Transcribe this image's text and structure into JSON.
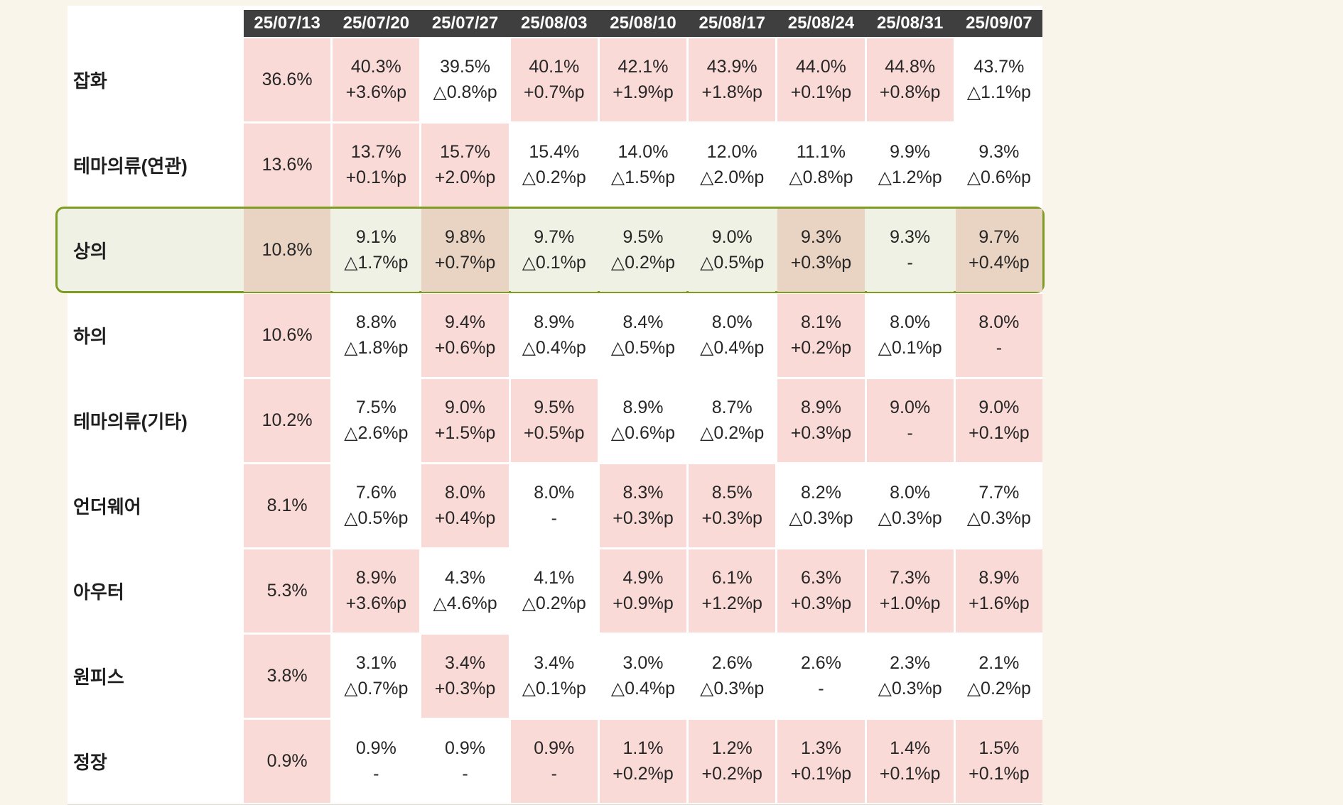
{
  "page": {
    "background_color": "#FAF5EB",
    "panel_color": "#FFFFFF"
  },
  "colors": {
    "header_bg": "#3F3F3F",
    "header_text": "#FFFFFF",
    "cell_pink": "#FADAD6",
    "cell_white": "#FFFFFF",
    "highlight_row_green": "#EEF1E3",
    "highlight_cell_tan": "#E9D3C2",
    "highlight_border_green": "#7E9C24",
    "text_color": "#262626"
  },
  "chart_data": {
    "type": "table",
    "columns": [
      "25/07/13",
      "25/07/20",
      "25/07/27",
      "25/08/03",
      "25/08/10",
      "25/08/17",
      "25/08/24",
      "25/08/31",
      "25/09/07"
    ],
    "rows": [
      {
        "label": "잡화",
        "highlight": false,
        "cells": [
          {
            "value": "36.6%",
            "change": "",
            "bg": "pink"
          },
          {
            "value": "40.3%",
            "change": "+3.6%p",
            "bg": "pink"
          },
          {
            "value": "39.5%",
            "change": "△0.8%p",
            "bg": "white"
          },
          {
            "value": "40.1%",
            "change": "+0.7%p",
            "bg": "pink"
          },
          {
            "value": "42.1%",
            "change": "+1.9%p",
            "bg": "pink"
          },
          {
            "value": "43.9%",
            "change": "+1.8%p",
            "bg": "pink"
          },
          {
            "value": "44.0%",
            "change": "+0.1%p",
            "bg": "pink"
          },
          {
            "value": "44.8%",
            "change": "+0.8%p",
            "bg": "pink"
          },
          {
            "value": "43.7%",
            "change": "△1.1%p",
            "bg": "white"
          }
        ]
      },
      {
        "label": "테마의류(연관)",
        "highlight": false,
        "cells": [
          {
            "value": "13.6%",
            "change": "",
            "bg": "pink"
          },
          {
            "value": "13.7%",
            "change": "+0.1%p",
            "bg": "pink"
          },
          {
            "value": "15.7%",
            "change": "+2.0%p",
            "bg": "pink"
          },
          {
            "value": "15.4%",
            "change": "△0.2%p",
            "bg": "white"
          },
          {
            "value": "14.0%",
            "change": "△1.5%p",
            "bg": "white"
          },
          {
            "value": "12.0%",
            "change": "△2.0%p",
            "bg": "white"
          },
          {
            "value": "11.1%",
            "change": "△0.8%p",
            "bg": "white"
          },
          {
            "value": "9.9%",
            "change": "△1.2%p",
            "bg": "white"
          },
          {
            "value": "9.3%",
            "change": "△0.6%p",
            "bg": "white"
          }
        ]
      },
      {
        "label": "상의",
        "highlight": true,
        "cells": [
          {
            "value": "10.8%",
            "change": "",
            "bg": "tan"
          },
          {
            "value": "9.1%",
            "change": "△1.7%p",
            "bg": "green"
          },
          {
            "value": "9.8%",
            "change": "+0.7%p",
            "bg": "tan"
          },
          {
            "value": "9.7%",
            "change": "△0.1%p",
            "bg": "green"
          },
          {
            "value": "9.5%",
            "change": "△0.2%p",
            "bg": "green"
          },
          {
            "value": "9.0%",
            "change": "△0.5%p",
            "bg": "green"
          },
          {
            "value": "9.3%",
            "change": "+0.3%p",
            "bg": "tan"
          },
          {
            "value": "9.3%",
            "change": "-",
            "bg": "green"
          },
          {
            "value": "9.7%",
            "change": "+0.4%p",
            "bg": "tan"
          }
        ]
      },
      {
        "label": "하의",
        "highlight": false,
        "cells": [
          {
            "value": "10.6%",
            "change": "",
            "bg": "pink"
          },
          {
            "value": "8.8%",
            "change": "△1.8%p",
            "bg": "white"
          },
          {
            "value": "9.4%",
            "change": "+0.6%p",
            "bg": "pink"
          },
          {
            "value": "8.9%",
            "change": "△0.4%p",
            "bg": "white"
          },
          {
            "value": "8.4%",
            "change": "△0.5%p",
            "bg": "white"
          },
          {
            "value": "8.0%",
            "change": "△0.4%p",
            "bg": "white"
          },
          {
            "value": "8.1%",
            "change": "+0.2%p",
            "bg": "pink"
          },
          {
            "value": "8.0%",
            "change": "△0.1%p",
            "bg": "white"
          },
          {
            "value": "8.0%",
            "change": "-",
            "bg": "pink"
          }
        ]
      },
      {
        "label": "테마의류(기타)",
        "highlight": false,
        "cells": [
          {
            "value": "10.2%",
            "change": "",
            "bg": "pink"
          },
          {
            "value": "7.5%",
            "change": "△2.6%p",
            "bg": "white"
          },
          {
            "value": "9.0%",
            "change": "+1.5%p",
            "bg": "pink"
          },
          {
            "value": "9.5%",
            "change": "+0.5%p",
            "bg": "pink"
          },
          {
            "value": "8.9%",
            "change": "△0.6%p",
            "bg": "white"
          },
          {
            "value": "8.7%",
            "change": "△0.2%p",
            "bg": "white"
          },
          {
            "value": "8.9%",
            "change": "+0.3%p",
            "bg": "pink"
          },
          {
            "value": "9.0%",
            "change": "-",
            "bg": "pink"
          },
          {
            "value": "9.0%",
            "change": "+0.1%p",
            "bg": "pink"
          }
        ]
      },
      {
        "label": "언더웨어",
        "highlight": false,
        "cells": [
          {
            "value": "8.1%",
            "change": "",
            "bg": "pink"
          },
          {
            "value": "7.6%",
            "change": "△0.5%p",
            "bg": "white"
          },
          {
            "value": "8.0%",
            "change": "+0.4%p",
            "bg": "pink"
          },
          {
            "value": "8.0%",
            "change": "-",
            "bg": "white"
          },
          {
            "value": "8.3%",
            "change": "+0.3%p",
            "bg": "pink"
          },
          {
            "value": "8.5%",
            "change": "+0.3%p",
            "bg": "pink"
          },
          {
            "value": "8.2%",
            "change": "△0.3%p",
            "bg": "white"
          },
          {
            "value": "8.0%",
            "change": "△0.3%p",
            "bg": "white"
          },
          {
            "value": "7.7%",
            "change": "△0.3%p",
            "bg": "white"
          }
        ]
      },
      {
        "label": "아우터",
        "highlight": false,
        "cells": [
          {
            "value": "5.3%",
            "change": "",
            "bg": "pink"
          },
          {
            "value": "8.9%",
            "change": "+3.6%p",
            "bg": "pink"
          },
          {
            "value": "4.3%",
            "change": "△4.6%p",
            "bg": "white"
          },
          {
            "value": "4.1%",
            "change": "△0.2%p",
            "bg": "white"
          },
          {
            "value": "4.9%",
            "change": "+0.9%p",
            "bg": "pink"
          },
          {
            "value": "6.1%",
            "change": "+1.2%p",
            "bg": "pink"
          },
          {
            "value": "6.3%",
            "change": "+0.3%p",
            "bg": "pink"
          },
          {
            "value": "7.3%",
            "change": "+1.0%p",
            "bg": "pink"
          },
          {
            "value": "8.9%",
            "change": "+1.6%p",
            "bg": "pink"
          }
        ]
      },
      {
        "label": "원피스",
        "highlight": false,
        "cells": [
          {
            "value": "3.8%",
            "change": "",
            "bg": "pink"
          },
          {
            "value": "3.1%",
            "change": "△0.7%p",
            "bg": "white"
          },
          {
            "value": "3.4%",
            "change": "+0.3%p",
            "bg": "pink"
          },
          {
            "value": "3.4%",
            "change": "△0.1%p",
            "bg": "white"
          },
          {
            "value": "3.0%",
            "change": "△0.4%p",
            "bg": "white"
          },
          {
            "value": "2.6%",
            "change": "△0.3%p",
            "bg": "white"
          },
          {
            "value": "2.6%",
            "change": "-",
            "bg": "white"
          },
          {
            "value": "2.3%",
            "change": "△0.3%p",
            "bg": "white"
          },
          {
            "value": "2.1%",
            "change": "△0.2%p",
            "bg": "white"
          }
        ]
      },
      {
        "label": "정장",
        "highlight": false,
        "cells": [
          {
            "value": "0.9%",
            "change": "",
            "bg": "pink"
          },
          {
            "value": "0.9%",
            "change": "-",
            "bg": "white"
          },
          {
            "value": "0.9%",
            "change": "-",
            "bg": "white"
          },
          {
            "value": "0.9%",
            "change": "-",
            "bg": "pink"
          },
          {
            "value": "1.1%",
            "change": "+0.2%p",
            "bg": "pink"
          },
          {
            "value": "1.2%",
            "change": "+0.2%p",
            "bg": "pink"
          },
          {
            "value": "1.3%",
            "change": "+0.1%p",
            "bg": "pink"
          },
          {
            "value": "1.4%",
            "change": "+0.1%p",
            "bg": "pink"
          },
          {
            "value": "1.5%",
            "change": "+0.1%p",
            "bg": "pink"
          }
        ]
      }
    ]
  }
}
